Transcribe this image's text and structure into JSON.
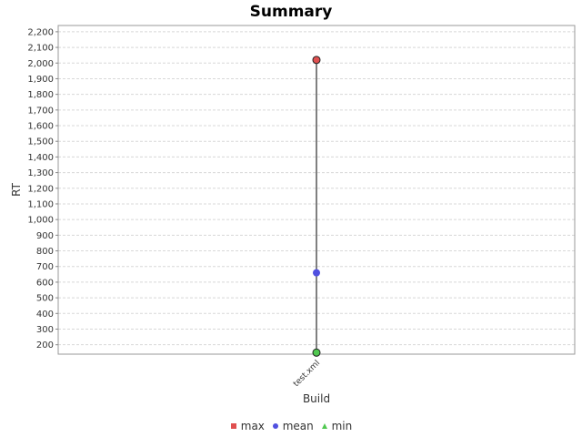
{
  "chart_data": {
    "type": "scatter",
    "title": "Summary",
    "xlabel": "Build",
    "ylabel": "RT",
    "categories": [
      "test.xml"
    ],
    "ylim": [
      140,
      2240
    ],
    "yticks": [
      200,
      300,
      400,
      500,
      600,
      700,
      800,
      900,
      1000,
      1100,
      1200,
      1300,
      1400,
      1500,
      1600,
      1700,
      1800,
      1900,
      2000,
      2100,
      2200
    ],
    "ytick_labels": [
      "200",
      "300",
      "400",
      "500",
      "600",
      "700",
      "800",
      "900",
      "1,000",
      "1,100",
      "1,200",
      "1,300",
      "1,400",
      "1,500",
      "1,600",
      "1,700",
      "1,800",
      "1,900",
      "2,000",
      "2,100",
      "2,200"
    ],
    "grid": true,
    "legend_position": "bottom",
    "series": [
      {
        "name": "max",
        "values": [
          2020
        ],
        "color": "#e05050",
        "marker": "square"
      },
      {
        "name": "mean",
        "values": [
          660
        ],
        "color": "#5050e0",
        "marker": "circle"
      },
      {
        "name": "min",
        "values": [
          150
        ],
        "color": "#50c850",
        "marker": "triangle"
      }
    ]
  }
}
